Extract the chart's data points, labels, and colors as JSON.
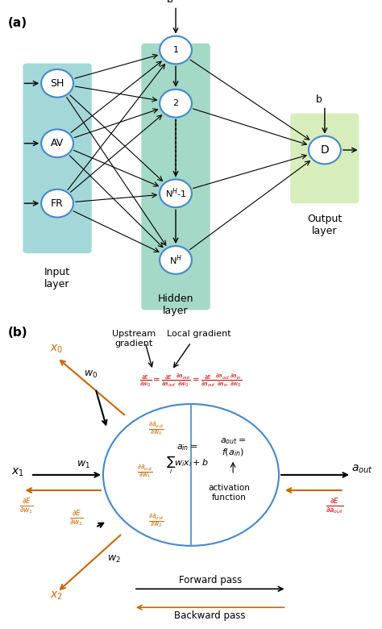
{
  "fig_width": 4.74,
  "fig_height": 7.8,
  "dpi": 100,
  "panel_a_label": "(a)",
  "panel_b_label": "(b)",
  "input_nodes": [
    "SH",
    "AV",
    "FR"
  ],
  "hidden_nodes": [
    "1",
    "2",
    "N$^H$-1",
    "N$^H$"
  ],
  "output_node": "D",
  "input_layer_label": "Input\nlayer",
  "hidden_layer_label": "Hidden\nlayer",
  "output_layer_label": "Output\nlayer",
  "input_bg": "#7ec8c8",
  "hidden_bg": "#7ec8b0",
  "output_bg": "#c8e6a0",
  "node_edge_color": "#4488cc",
  "node_face_color": "white",
  "bias_label": "b",
  "arrow_color": "black",
  "formula_color_red": "#cc0000",
  "formula_color_orange": "#cc6600",
  "circle_color": "#4488cc"
}
